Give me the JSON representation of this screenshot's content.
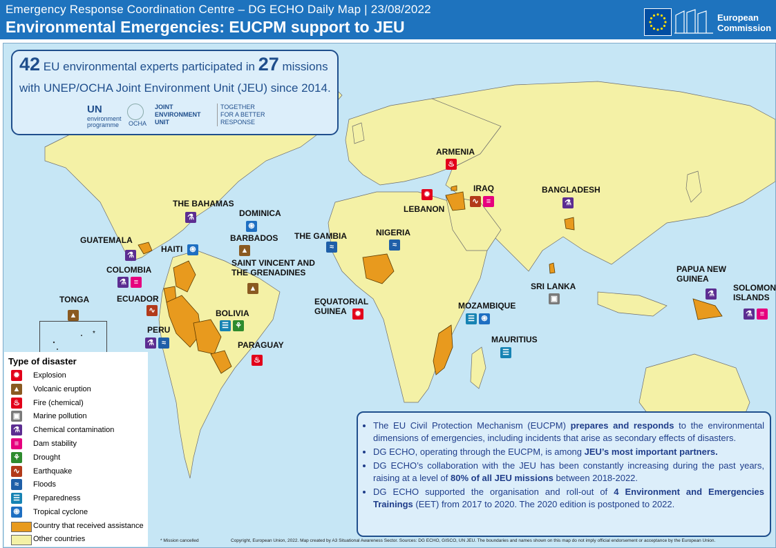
{
  "header": {
    "subtitle": "Emergency Response Coordination Centre – DG ECHO Daily Map | 23/08/2022",
    "title": "Environmental Emergencies: EUCPM support to JEU",
    "logo_line1": "European",
    "logo_line2": "Commission"
  },
  "stats": {
    "experts": "42",
    "experts_text": "EU environmental experts participated in",
    "missions": "27",
    "missions_text": "missions",
    "line2": "with UNEP/OCHA Joint Environment Unit (JEU) since 2014.",
    "logo_un": "UN",
    "logo_unep": "environment programme",
    "logo_ocha": "OCHA",
    "logo_jeu": "JOINT ENVIRONMENT UNIT",
    "logo_tagline": "TOGETHER FOR A BETTER RESPONSE"
  },
  "countries": [
    {
      "name": "ARMENIA",
      "icons": [
        "fire"
      ]
    },
    {
      "name": "IRAQ",
      "icons": [
        "earthquake",
        "dam"
      ]
    },
    {
      "name": "LEBANON",
      "icons": [
        "explosion"
      ]
    },
    {
      "name": "BANGLADESH",
      "icons": [
        "chemical"
      ]
    },
    {
      "name": "THE BAHAMAS",
      "icons": [
        "chemical"
      ]
    },
    {
      "name": "DOMINICA",
      "icons": [
        "cyclone"
      ]
    },
    {
      "name": "BARBADOS",
      "icons": [
        "volcanic"
      ]
    },
    {
      "name": "SAINT VINCENT AND THE GRENADINES",
      "icons": [
        "volcanic"
      ]
    },
    {
      "name": "GUATEMALA",
      "icons": [
        "chemical"
      ]
    },
    {
      "name": "HAITI",
      "icons": [
        "cyclone"
      ]
    },
    {
      "name": "COLOMBIA",
      "icons": [
        "chemical",
        "dam"
      ]
    },
    {
      "name": "ECUADOR",
      "icons": [
        "earthquake"
      ]
    },
    {
      "name": "PERU",
      "icons": [
        "chemical",
        "floods"
      ]
    },
    {
      "name": "BOLIVIA",
      "icons": [
        "preparedness",
        "drought"
      ]
    },
    {
      "name": "PARAGUAY",
      "icons": [
        "fire"
      ]
    },
    {
      "name": "TONGA",
      "icons": [
        "volcanic"
      ]
    },
    {
      "name": "THE GAMBIA",
      "icons": [
        "floods"
      ]
    },
    {
      "name": "NIGERIA",
      "icons": [
        "floods"
      ]
    },
    {
      "name": "EQUATORIAL GUINEA",
      "icons": [
        "explosion"
      ]
    },
    {
      "name": "MOZAMBIQUE",
      "icons": [
        "preparedness",
        "cyclone"
      ]
    },
    {
      "name": "MAURITIUS",
      "icons": [
        "preparedness"
      ]
    },
    {
      "name": "SRI LANKA",
      "icons": [
        "marine"
      ]
    },
    {
      "name": "PAPUA NEW GUINEA",
      "icons": [
        "chemical"
      ]
    },
    {
      "name": "SOLOMON ISLANDS",
      "icons": [
        "chemical",
        "dam"
      ]
    }
  ],
  "legend": {
    "title": "Type of disaster",
    "items": [
      {
        "key": "explosion",
        "label": "Explosion"
      },
      {
        "key": "volcanic",
        "label": "Volcanic eruption"
      },
      {
        "key": "fire",
        "label": "Fire (chemical)"
      },
      {
        "key": "marine",
        "label": "Marine pollution"
      },
      {
        "key": "chemical",
        "label": "Chemical contamination"
      },
      {
        "key": "dam",
        "label": "Dam stability"
      },
      {
        "key": "drought",
        "label": "Drought"
      },
      {
        "key": "earthquake",
        "label": "Earthquake"
      },
      {
        "key": "floods",
        "label": "Floods"
      },
      {
        "key": "preparedness",
        "label": "Preparedness"
      },
      {
        "key": "cyclone",
        "label": "Tropical cyclone"
      }
    ],
    "assisted": "Country that received assistance",
    "other": "Other countries",
    "assisted_color": "#e89a1e",
    "other_color": "#f4f1a6"
  },
  "icon_glyphs": {
    "explosion": "✹",
    "volcanic": "▲",
    "fire": "♨",
    "marine": "▣",
    "chemical": "⚗",
    "dam": "≡",
    "drought": "⚘",
    "earthquake": "∿",
    "floods": "≈",
    "preparedness": "☰",
    "cyclone": "֍"
  },
  "info": {
    "b1_a": "The EU Civil Protection Mechanism (EUCPM) ",
    "b1_b": "prepares and responds",
    "b1_c": " to the environmental dimensions of emergencies, including incidents that arise as secondary effects of disasters.",
    "b2_a": "DG ECHO, operating through the EUCPM, is among ",
    "b2_b": "JEU’s most important partners.",
    "b3_a": "DG ECHO’s collaboration with the JEU has been constantly increasing during the past years, raising at a level of ",
    "b3_b": "80% of all JEU missions",
    "b3_c": " between 2018-2022.",
    "b4_a": "DG ECHO supported the organisation and roll-out of ",
    "b4_b": "4 Environment and Emergencies Trainings",
    "b4_c": " (EET) from 2017 to 2020. The 2020 edition is postponed to 2022."
  },
  "footer": {
    "note": "* Mission cancelled",
    "copyright": "Copyright, European Union, 2022. Map created by A3 Situational Awareness Sector. Sources: DG ECHO, GISCO, UN JEU. The boundaries and names shown on this map do not imply official endorsement or acceptance by the European Union."
  },
  "inset_mark": "*"
}
